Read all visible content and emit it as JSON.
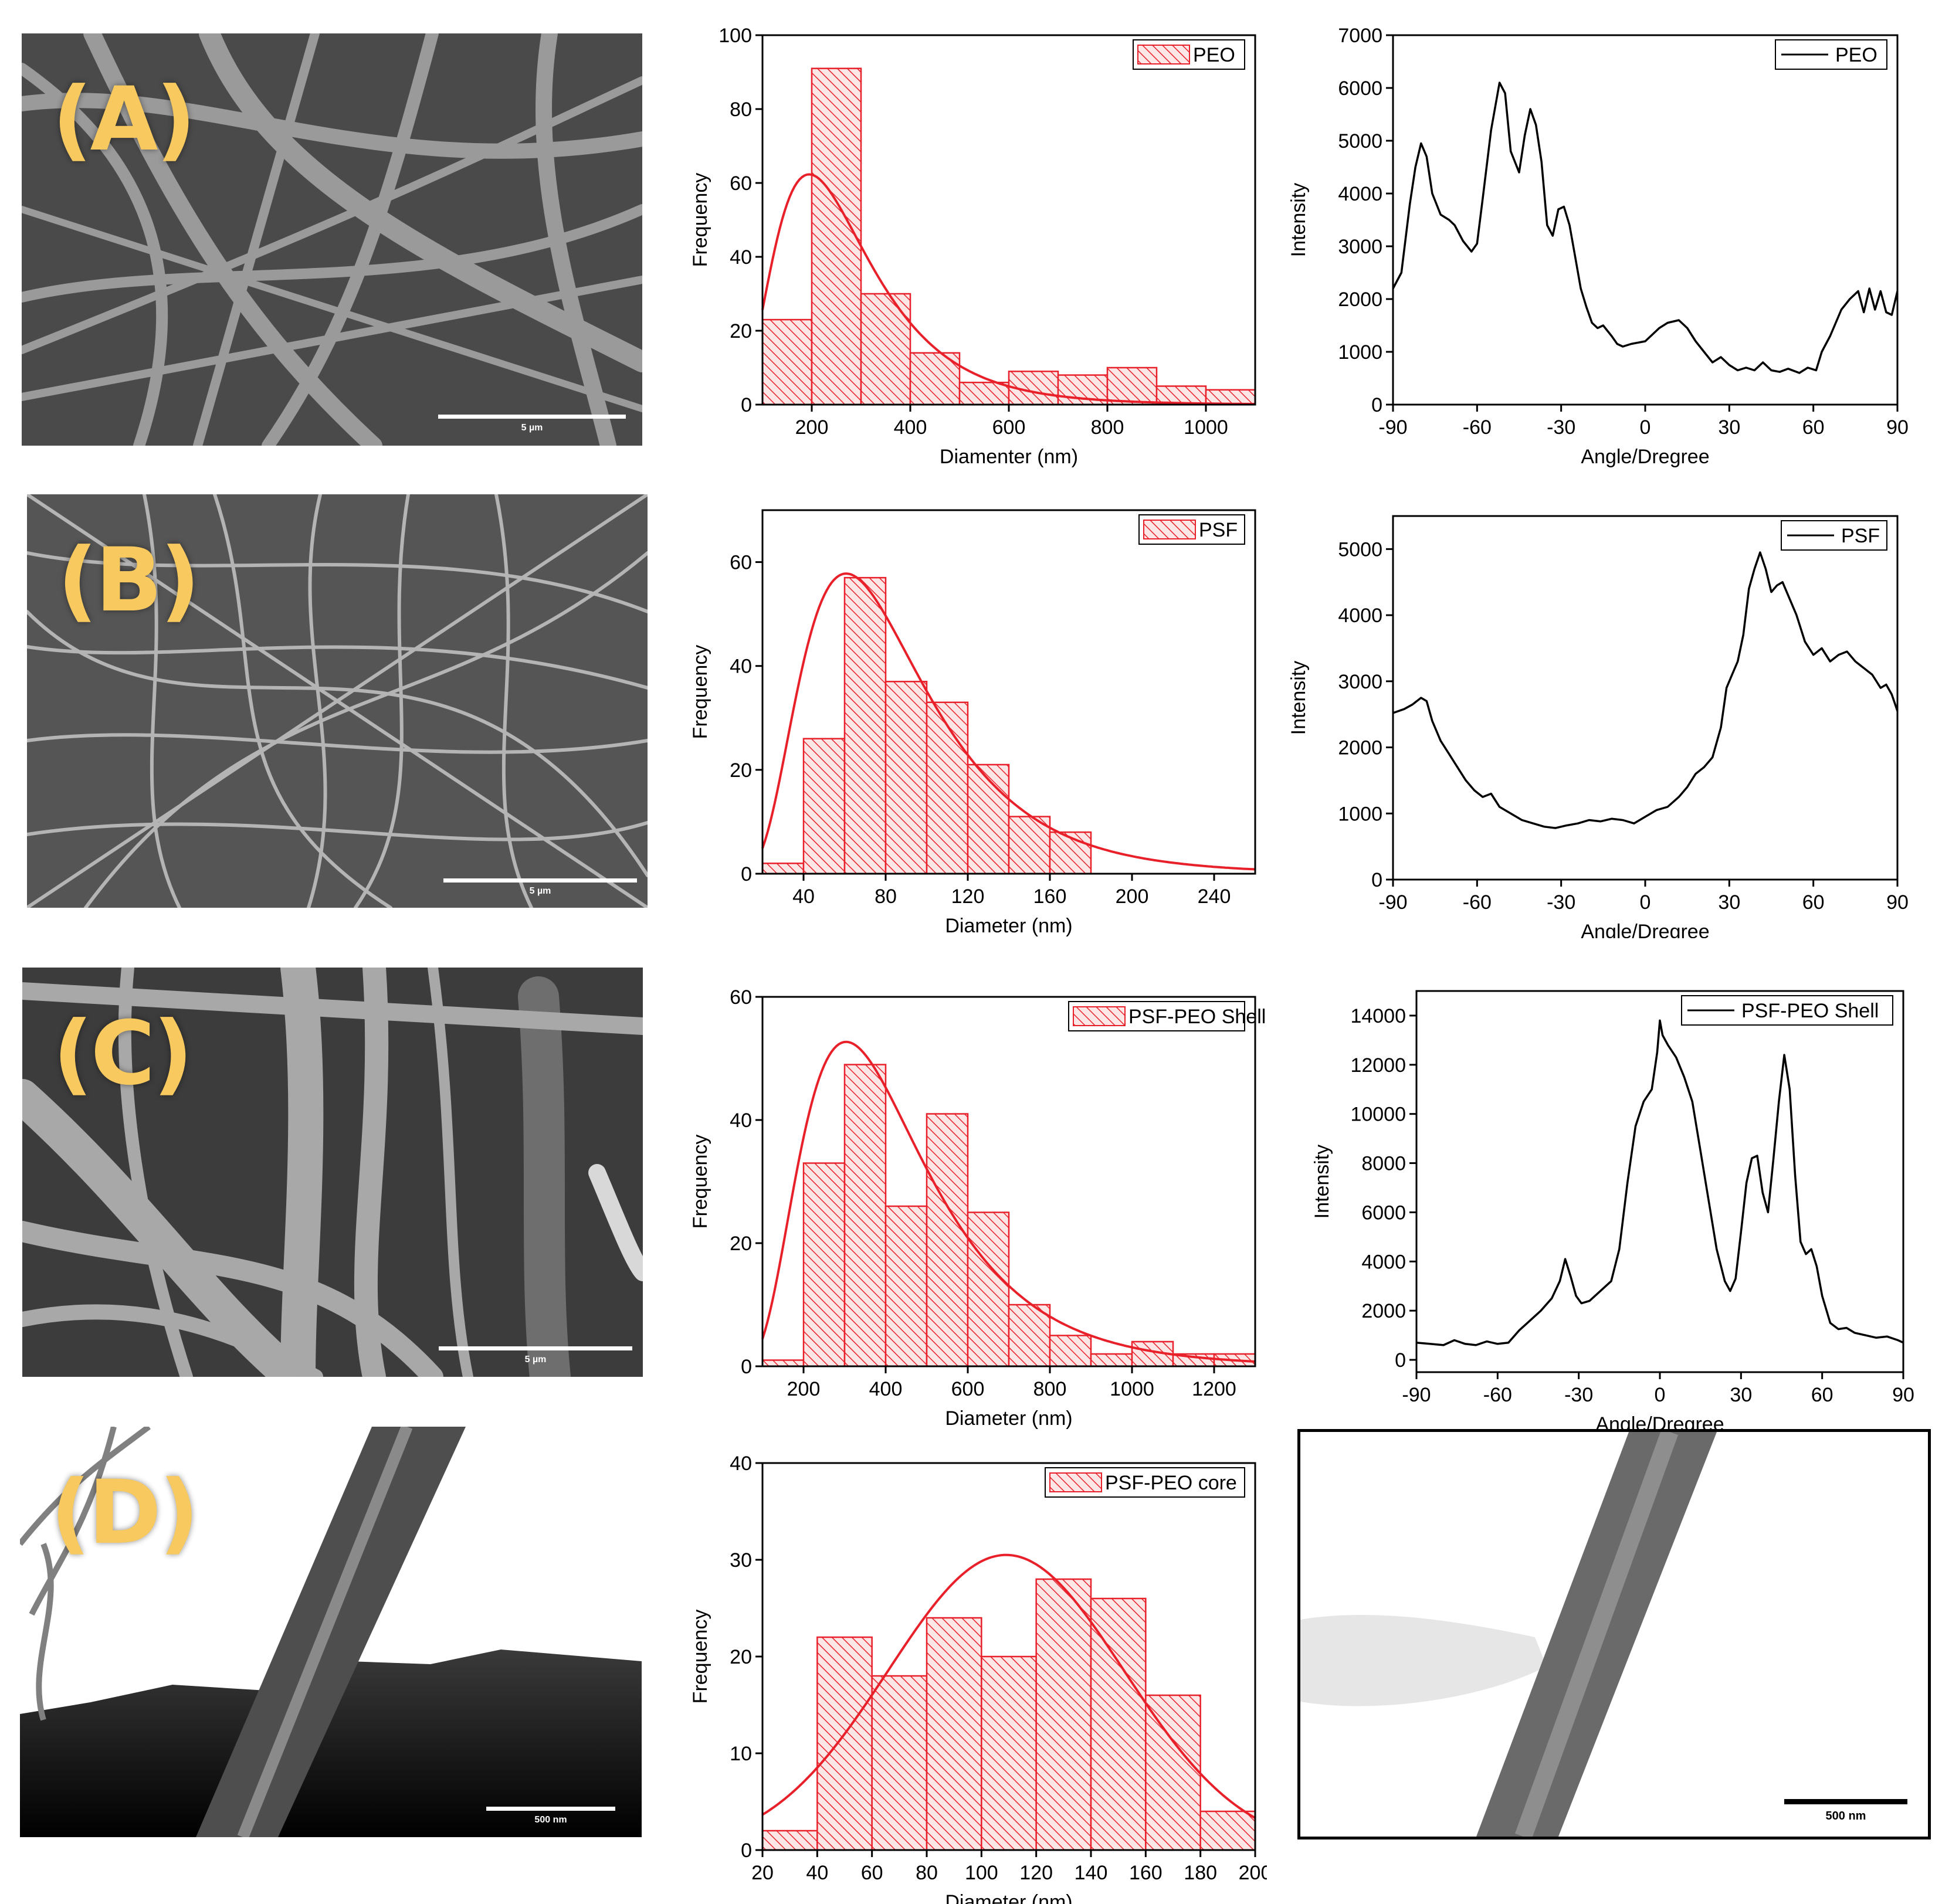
{
  "rows": [
    {
      "label": "(A)",
      "scale": "5 µm"
    },
    {
      "label": "(B)",
      "scale": "5 µm"
    },
    {
      "label": "(C)",
      "scale": "5 µm"
    },
    {
      "label": "(D)",
      "scale": "500 nm"
    }
  ],
  "tem_scale": "500 nm",
  "colors": {
    "hist": "#e8202a",
    "xrd": "#000000",
    "label": "#f7c95e"
  },
  "chart_data": [
    {
      "type": "bar",
      "subtype": "histogram",
      "xlabel": "Diamenter (nm)",
      "ylabel": "Frequency",
      "xlim": [
        100,
        1100
      ],
      "ylim": [
        0,
        100
      ],
      "xticks": [
        200,
        400,
        600,
        800,
        1000
      ],
      "yticks": [
        0,
        20,
        40,
        60,
        80,
        100
      ],
      "legend": "PEO",
      "legend_position": "top-right",
      "bin_width": 100,
      "bins": [
        100,
        200,
        300,
        400,
        500,
        600,
        700,
        800,
        900,
        1000
      ],
      "values": [
        23,
        91,
        30,
        14,
        6,
        9,
        8,
        10,
        5,
        4
      ],
      "fit": {
        "type": "lognormal",
        "peak_x": 250,
        "peak_y": 55
      }
    },
    {
      "type": "line",
      "xlabel": "Angle/Dregree",
      "ylabel": "Intensity",
      "xlim": [
        -90,
        90
      ],
      "ylim": [
        0,
        7000
      ],
      "xticks": [
        -90,
        -60,
        -30,
        0,
        30,
        60,
        90
      ],
      "yticks": [
        0,
        1000,
        2000,
        3000,
        4000,
        5000,
        6000,
        7000
      ],
      "legend": "PEO",
      "legend_position": "top-right",
      "x": [
        -90,
        -87,
        -84,
        -82,
        -80,
        -78,
        -76,
        -73,
        -70,
        -68,
        -65,
        -62,
        -60,
        -58,
        -55,
        -52,
        -50,
        -48,
        -45,
        -43,
        -41,
        -39,
        -37,
        -35,
        -33,
        -31,
        -29,
        -27,
        -25,
        -23,
        -21,
        -19,
        -17,
        -15,
        -12,
        -10,
        -8,
        -5,
        0,
        5,
        8,
        12,
        15,
        18,
        21,
        24,
        27,
        30,
        33,
        36,
        39,
        42,
        45,
        48,
        51,
        55,
        58,
        61,
        63,
        66,
        70,
        73,
        76,
        78,
        80,
        82,
        84,
        86,
        88,
        90
      ],
      "y": [
        2200,
        2500,
        3800,
        4500,
        4950,
        4700,
        4000,
        3600,
        3500,
        3400,
        3100,
        2900,
        3050,
        3900,
        5200,
        6100,
        5900,
        4800,
        4400,
        5100,
        5600,
        5300,
        4600,
        3400,
        3200,
        3700,
        3750,
        3400,
        2800,
        2200,
        1850,
        1550,
        1450,
        1500,
        1300,
        1150,
        1100,
        1150,
        1200,
        1450,
        1550,
        1600,
        1450,
        1200,
        1000,
        800,
        900,
        750,
        650,
        700,
        650,
        800,
        650,
        620,
        680,
        600,
        700,
        650,
        1000,
        1300,
        1800,
        2000,
        2150,
        1750,
        2200,
        1800,
        2150,
        1750,
        1700,
        2150
      ]
    },
    {
      "type": "bar",
      "subtype": "histogram",
      "xlabel": "Diameter (nm)",
      "ylabel": "Frequency",
      "xlim": [
        20,
        260
      ],
      "ylim": [
        0,
        70
      ],
      "xticks": [
        40,
        80,
        120,
        160,
        200,
        240
      ],
      "yticks": [
        0,
        20,
        40,
        60
      ],
      "legend": "PSF",
      "legend_position": "top-right",
      "bin_width": 20,
      "bins": [
        20,
        40,
        60,
        80,
        100,
        120,
        140,
        160
      ],
      "values": [
        2,
        26,
        57,
        37,
        33,
        21,
        11,
        8
      ],
      "fit": {
        "type": "lognormal",
        "peak_x": 78,
        "peak_y": 51
      }
    },
    {
      "type": "line",
      "xlabel": "Angle/Dregree",
      "ylabel": "Intensity",
      "xlim": [
        -90,
        90
      ],
      "ylim": [
        0,
        5500
      ],
      "xticks": [
        -90,
        -60,
        -30,
        0,
        30,
        60,
        90
      ],
      "yticks": [
        0,
        1000,
        2000,
        3000,
        4000,
        5000
      ],
      "legend": "PSF",
      "legend_position": "top-right",
      "x": [
        -90,
        -86,
        -83,
        -80,
        -78,
        -76,
        -73,
        -70,
        -67,
        -64,
        -61,
        -58,
        -55,
        -52,
        -48,
        -44,
        -40,
        -36,
        -32,
        -28,
        -24,
        -20,
        -16,
        -12,
        -8,
        -4,
        0,
        4,
        8,
        12,
        15,
        18,
        21,
        24,
        27,
        29,
        31,
        33,
        35,
        37,
        39,
        41,
        43,
        45,
        47,
        49,
        51,
        54,
        57,
        60,
        63,
        66,
        69,
        72,
        75,
        78,
        81,
        84,
        86,
        88,
        90
      ],
      "y": [
        2520,
        2580,
        2650,
        2750,
        2700,
        2400,
        2100,
        1900,
        1700,
        1500,
        1350,
        1250,
        1300,
        1100,
        1000,
        900,
        850,
        800,
        780,
        820,
        850,
        900,
        880,
        920,
        900,
        850,
        950,
        1050,
        1100,
        1250,
        1400,
        1600,
        1700,
        1850,
        2300,
        2900,
        3100,
        3300,
        3700,
        4400,
        4700,
        4950,
        4700,
        4350,
        4450,
        4500,
        4300,
        4000,
        3600,
        3400,
        3500,
        3300,
        3400,
        3450,
        3300,
        3200,
        3100,
        2900,
        2950,
        2800,
        2550
      ]
    },
    {
      "type": "bar",
      "subtype": "histogram",
      "xlabel": "Diameter (nm)",
      "ylabel": "Frequency",
      "xlim": [
        100,
        1300
      ],
      "ylim": [
        0,
        60
      ],
      "xticks": [
        200,
        400,
        600,
        800,
        1000,
        1200
      ],
      "yticks": [
        0,
        20,
        40,
        60
      ],
      "legend": "PSF-PEO Shell",
      "legend_position": "top-right",
      "bin_width": 100,
      "bins": [
        100,
        200,
        300,
        400,
        500,
        600,
        700,
        800,
        900,
        1000,
        1100,
        1200
      ],
      "values": [
        1,
        33,
        49,
        26,
        41,
        25,
        10,
        5,
        2,
        4,
        2,
        2
      ],
      "fit": {
        "type": "lognormal",
        "peak_x": 390,
        "peak_y": 46.5
      }
    },
    {
      "type": "line",
      "xlabel": "Angle/Dregree",
      "ylabel": "Intensity",
      "xlim": [
        -90,
        90
      ],
      "ylim": [
        -500,
        15000
      ],
      "xticks": [
        -90,
        -60,
        -30,
        0,
        30,
        60,
        90
      ],
      "yticks": [
        0,
        2000,
        4000,
        6000,
        8000,
        10000,
        12000,
        14000
      ],
      "legend": "PSF-PEO Shell",
      "legend_position": "top-right",
      "x": [
        -90,
        -85,
        -80,
        -76,
        -72,
        -68,
        -64,
        -60,
        -56,
        -52,
        -48,
        -44,
        -40,
        -37,
        -35,
        -33,
        -31,
        -29,
        -26,
        -22,
        -18,
        -15,
        -12,
        -9,
        -6,
        -3,
        -1,
        0,
        1,
        3,
        6,
        9,
        12,
        15,
        18,
        21,
        24,
        26,
        28,
        30,
        32,
        34,
        36,
        38,
        40,
        42,
        44,
        46,
        48,
        50,
        52,
        54,
        56,
        58,
        60,
        63,
        66,
        69,
        72,
        76,
        80,
        84,
        88,
        90
      ],
      "y": [
        700,
        650,
        600,
        800,
        650,
        600,
        750,
        650,
        700,
        1200,
        1600,
        2000,
        2500,
        3200,
        4100,
        3400,
        2600,
        2300,
        2400,
        2800,
        3200,
        4500,
        7200,
        9500,
        10500,
        11000,
        12500,
        13800,
        13200,
        12800,
        12300,
        11500,
        10500,
        8500,
        6500,
        4500,
        3200,
        2800,
        3300,
        5200,
        7200,
        8200,
        8300,
        6800,
        6000,
        8200,
        10500,
        12400,
        11000,
        7500,
        4800,
        4300,
        4500,
        3800,
        2600,
        1500,
        1250,
        1300,
        1100,
        1000,
        900,
        950,
        800,
        700
      ]
    },
    {
      "type": "bar",
      "subtype": "histogram",
      "xlabel": "Diameter (nm)",
      "ylabel": "Frequency",
      "xlim": [
        20,
        200
      ],
      "ylim": [
        0,
        40
      ],
      "xticks": [
        20,
        40,
        60,
        80,
        100,
        120,
        140,
        160,
        180,
        200
      ],
      "yticks": [
        0,
        10,
        20,
        30,
        40
      ],
      "legend": "PSF-PEO core",
      "legend_position": "top-right",
      "bin_width": 20,
      "bins": [
        20,
        40,
        60,
        80,
        100,
        120,
        140,
        160,
        180
      ],
      "values": [
        2,
        22,
        18,
        24,
        20,
        28,
        26,
        16,
        4
      ],
      "fit": {
        "type": "normal",
        "peak_x": 109,
        "peak_y": 30.5
      }
    }
  ]
}
